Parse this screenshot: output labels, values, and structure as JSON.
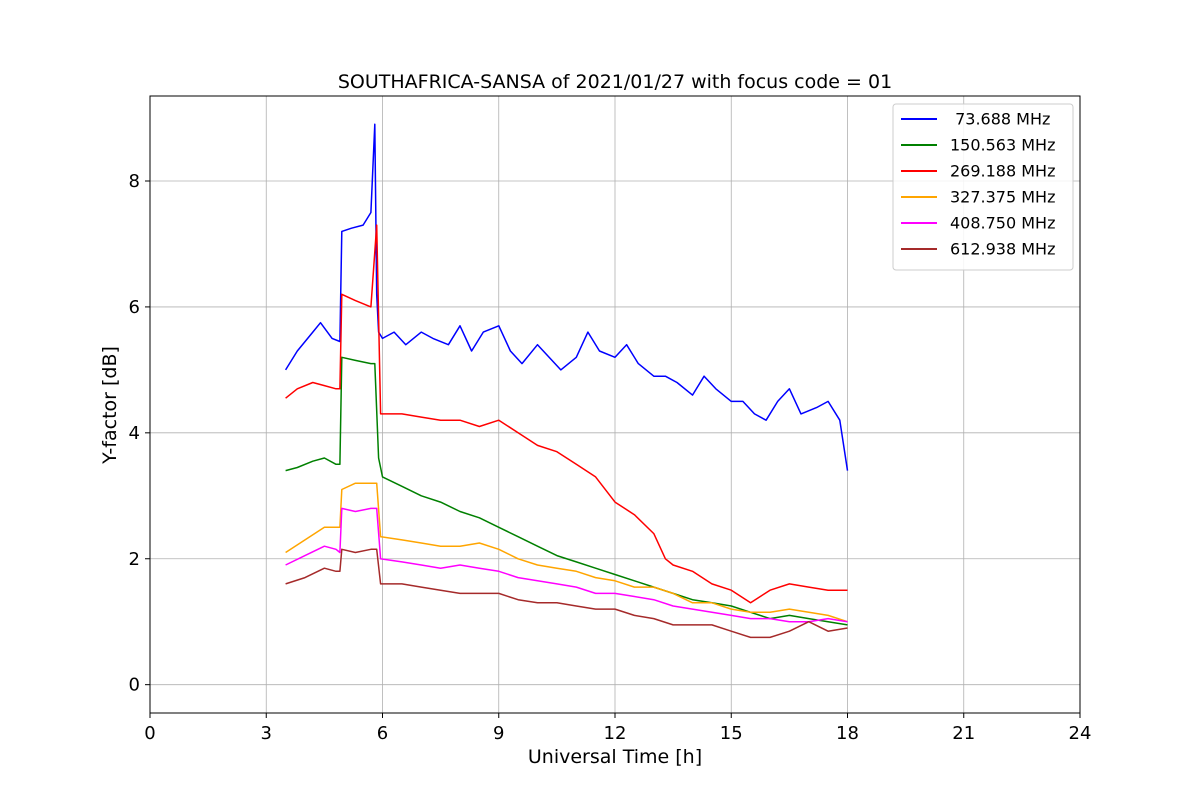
{
  "chart_data": {
    "type": "line",
    "title": "SOUTHAFRICA-SANSA of 2021/01/27 with focus code = 01",
    "xlabel": "Universal Time [h]",
    "ylabel": "Y-factor [dB]",
    "xlim": [
      0,
      24
    ],
    "ylim": [
      -0.45,
      9.35
    ],
    "xticks": [
      0,
      3,
      6,
      9,
      12,
      15,
      18,
      21,
      24
    ],
    "yticks": [
      0,
      2,
      4,
      6,
      8
    ],
    "grid": true,
    "legend_position": "top-right",
    "series": [
      {
        "name": " 73.688 MHz",
        "color": "#0000ff",
        "x": [
          3.5,
          3.8,
          4.2,
          4.4,
          4.7,
          4.9,
          4.95,
          5.2,
          5.5,
          5.7,
          5.8,
          5.85,
          5.9,
          6.0,
          6.3,
          6.6,
          7.0,
          7.3,
          7.7,
          8.0,
          8.3,
          8.6,
          9.0,
          9.3,
          9.6,
          10.0,
          10.3,
          10.6,
          11.0,
          11.3,
          11.6,
          12.0,
          12.3,
          12.6,
          13.0,
          13.3,
          13.6,
          14.0,
          14.3,
          14.6,
          15.0,
          15.3,
          15.6,
          15.9,
          16.2,
          16.5,
          16.8,
          17.2,
          17.5,
          17.8,
          18.0
        ],
        "y": [
          5.0,
          5.3,
          5.6,
          5.75,
          5.5,
          5.45,
          7.2,
          7.25,
          7.3,
          7.5,
          8.9,
          6.2,
          5.6,
          5.5,
          5.6,
          5.4,
          5.6,
          5.5,
          5.4,
          5.7,
          5.3,
          5.6,
          5.7,
          5.3,
          5.1,
          5.4,
          5.2,
          5.0,
          5.2,
          5.6,
          5.3,
          5.2,
          5.4,
          5.1,
          4.9,
          4.9,
          4.8,
          4.6,
          4.9,
          4.7,
          4.5,
          4.5,
          4.3,
          4.2,
          4.5,
          4.7,
          4.3,
          4.4,
          4.5,
          4.2,
          3.4
        ]
      },
      {
        "name": "150.563 MHz",
        "color": "#008000",
        "x": [
          3.5,
          3.8,
          4.2,
          4.5,
          4.8,
          4.9,
          4.95,
          5.3,
          5.7,
          5.8,
          5.9,
          6.0,
          6.5,
          7.0,
          7.5,
          8.0,
          8.5,
          9.0,
          9.5,
          10.0,
          10.5,
          11.0,
          11.5,
          12.0,
          12.5,
          13.0,
          13.5,
          14.0,
          14.5,
          15.0,
          15.5,
          16.0,
          16.5,
          17.0,
          17.5,
          18.0
        ],
        "y": [
          3.4,
          3.45,
          3.55,
          3.6,
          3.5,
          3.5,
          5.2,
          5.15,
          5.1,
          5.1,
          3.6,
          3.3,
          3.15,
          3.0,
          2.9,
          2.75,
          2.65,
          2.5,
          2.35,
          2.2,
          2.05,
          1.95,
          1.85,
          1.75,
          1.65,
          1.55,
          1.45,
          1.35,
          1.3,
          1.25,
          1.15,
          1.05,
          1.1,
          1.05,
          1.0,
          0.95
        ]
      },
      {
        "name": "269.188 MHz",
        "color": "#ff0000",
        "x": [
          3.5,
          3.8,
          4.2,
          4.5,
          4.8,
          4.9,
          4.95,
          5.3,
          5.7,
          5.85,
          5.95,
          6.0,
          6.5,
          7.0,
          7.5,
          8.0,
          8.5,
          9.0,
          9.5,
          10.0,
          10.5,
          11.0,
          11.5,
          12.0,
          12.5,
          13.0,
          13.3,
          13.5,
          14.0,
          14.5,
          15.0,
          15.5,
          16.0,
          16.5,
          17.0,
          17.5,
          18.0
        ],
        "y": [
          4.55,
          4.7,
          4.8,
          4.75,
          4.7,
          4.7,
          6.2,
          6.1,
          6.0,
          7.3,
          4.3,
          4.3,
          4.3,
          4.25,
          4.2,
          4.2,
          4.1,
          4.2,
          4.0,
          3.8,
          3.7,
          3.5,
          3.3,
          2.9,
          2.7,
          2.4,
          2.0,
          1.9,
          1.8,
          1.6,
          1.5,
          1.3,
          1.5,
          1.6,
          1.55,
          1.5,
          1.5
        ]
      },
      {
        "name": "327.375 MHz",
        "color": "#ffa500",
        "x": [
          3.5,
          4.0,
          4.5,
          4.8,
          4.9,
          4.95,
          5.3,
          5.7,
          5.85,
          5.95,
          6.5,
          7.0,
          7.5,
          8.0,
          8.5,
          9.0,
          9.5,
          10.0,
          10.5,
          11.0,
          11.5,
          12.0,
          12.5,
          13.0,
          13.5,
          14.0,
          14.5,
          15.0,
          15.5,
          16.0,
          16.5,
          17.0,
          17.5,
          18.0
        ],
        "y": [
          2.1,
          2.3,
          2.5,
          2.5,
          2.5,
          3.1,
          3.2,
          3.2,
          3.2,
          2.35,
          2.3,
          2.25,
          2.2,
          2.2,
          2.25,
          2.15,
          2.0,
          1.9,
          1.85,
          1.8,
          1.7,
          1.65,
          1.55,
          1.55,
          1.45,
          1.3,
          1.3,
          1.2,
          1.15,
          1.15,
          1.2,
          1.15,
          1.1,
          1.0
        ]
      },
      {
        "name": "408.750 MHz",
        "color": "#ff00ff",
        "x": [
          3.5,
          4.0,
          4.5,
          4.8,
          4.9,
          4.95,
          5.3,
          5.7,
          5.85,
          5.95,
          6.5,
          7.0,
          7.5,
          8.0,
          8.5,
          9.0,
          9.5,
          10.0,
          10.5,
          11.0,
          11.5,
          12.0,
          12.5,
          13.0,
          13.5,
          14.0,
          14.5,
          15.0,
          15.5,
          16.0,
          16.5,
          17.0,
          17.5,
          18.0
        ],
        "y": [
          1.9,
          2.05,
          2.2,
          2.15,
          2.1,
          2.8,
          2.75,
          2.8,
          2.8,
          2.0,
          1.95,
          1.9,
          1.85,
          1.9,
          1.85,
          1.8,
          1.7,
          1.65,
          1.6,
          1.55,
          1.45,
          1.45,
          1.4,
          1.35,
          1.25,
          1.2,
          1.15,
          1.1,
          1.05,
          1.05,
          1.0,
          1.0,
          1.05,
          1.0
        ]
      },
      {
        "name": "612.938 MHz",
        "color": "#a52a2a",
        "x": [
          3.5,
          4.0,
          4.5,
          4.8,
          4.9,
          4.95,
          5.3,
          5.7,
          5.85,
          5.95,
          6.5,
          7.0,
          7.5,
          8.0,
          8.5,
          9.0,
          9.5,
          10.0,
          10.5,
          11.0,
          11.5,
          12.0,
          12.5,
          13.0,
          13.5,
          14.0,
          14.5,
          15.0,
          15.5,
          16.0,
          16.5,
          17.0,
          17.5,
          18.0
        ],
        "y": [
          1.6,
          1.7,
          1.85,
          1.8,
          1.8,
          2.15,
          2.1,
          2.15,
          2.15,
          1.6,
          1.6,
          1.55,
          1.5,
          1.45,
          1.45,
          1.45,
          1.35,
          1.3,
          1.3,
          1.25,
          1.2,
          1.2,
          1.1,
          1.05,
          0.95,
          0.95,
          0.95,
          0.85,
          0.75,
          0.75,
          0.85,
          1.0,
          0.85,
          0.9
        ]
      }
    ]
  }
}
